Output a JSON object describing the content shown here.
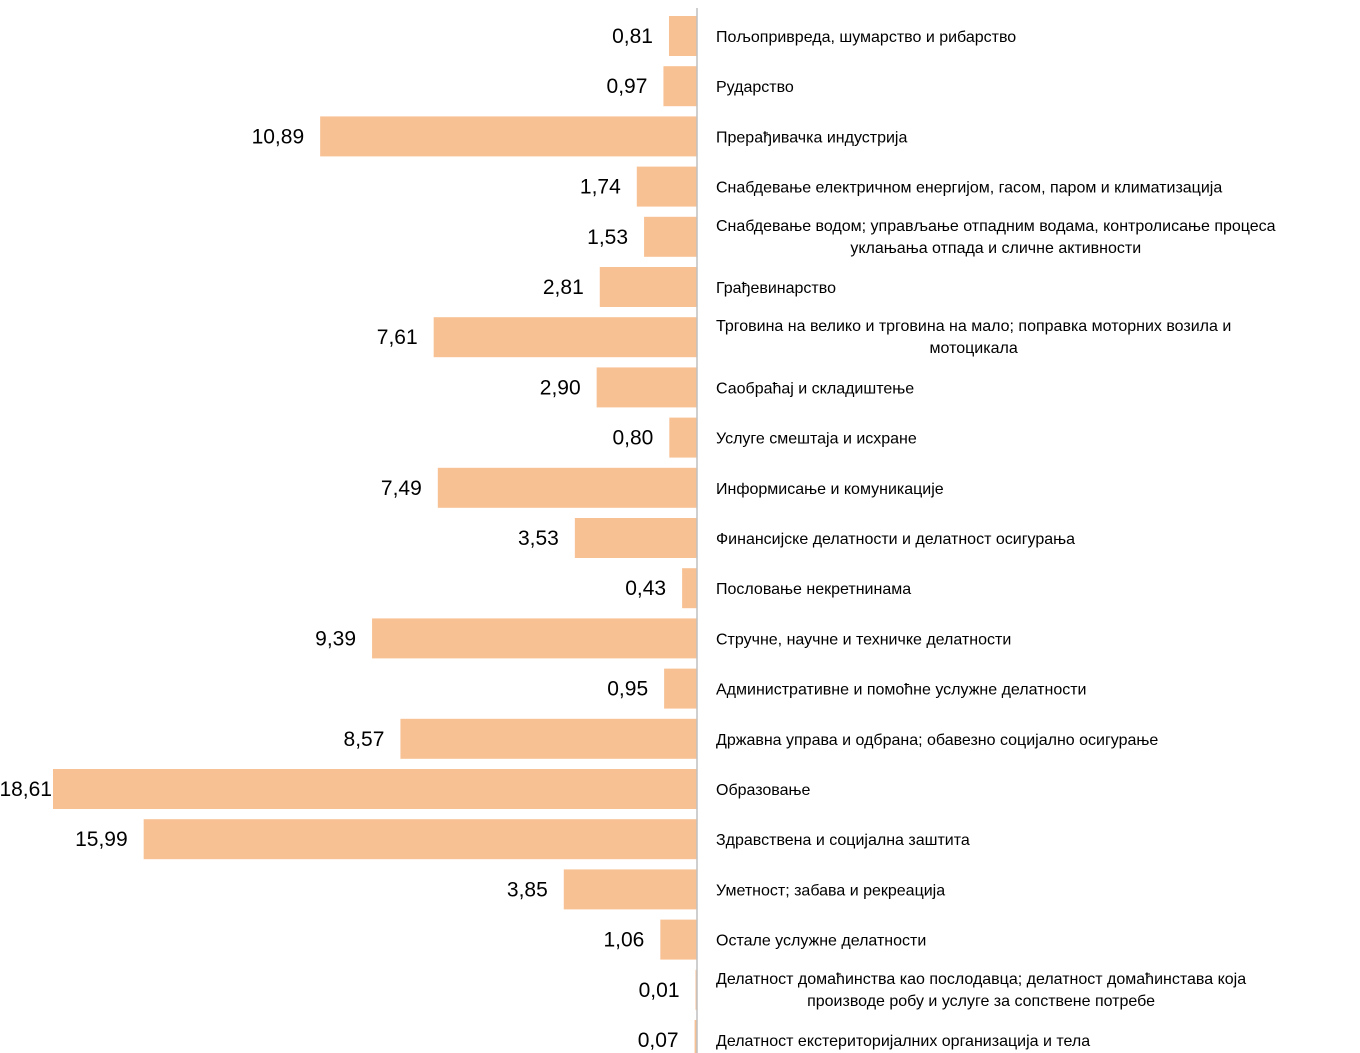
{
  "chart_data": {
    "type": "bar",
    "orientation": "horizontal",
    "bar_color": "#f8c194",
    "axis_color": "#bfbfbf",
    "title": "",
    "xlabel": "",
    "ylabel": "",
    "xlim": [
      0,
      18.61
    ],
    "grid": false,
    "legend": "none",
    "categories": [
      [
        "Пољопривреда, шумарство и рибарство"
      ],
      [
        "Рударство"
      ],
      [
        "Прерађивачка индустрија"
      ],
      [
        "Снабдевање електричном енергијом, гасом, паром и климатизација"
      ],
      [
        "Снабдевање водом; управљање отпадним водама, контролисање процеса",
        "уклањања отпада и сличне активности"
      ],
      [
        "Грађевинарство"
      ],
      [
        "Трговина на велико и трговина на мало; поправка моторних возила и",
        "мотоцикала"
      ],
      [
        "Саобраћај и складиштење"
      ],
      [
        "Услуге смештаја и исхране"
      ],
      [
        "Информисање и комуникације"
      ],
      [
        "Финансијске делатности и делатност осигурања"
      ],
      [
        "Пословање некретнинама"
      ],
      [
        "Стручне, научне и техничке делатности"
      ],
      [
        "Административне и помоћне услужне делатности"
      ],
      [
        "Државна управа и одбрана; обавезно социјално осигурање"
      ],
      [
        "Образовање"
      ],
      [
        "Здравствена и социјална заштита"
      ],
      [
        "Уметност; забава и рекреација"
      ],
      [
        "Остале услужне делатности"
      ],
      [
        "Делатност домаћинства као послодавца; делатност домаћинстава која",
        "производе робу и услуге за сопствене потребе"
      ],
      [
        "Делатност екстериторијалних организација и тела"
      ]
    ],
    "values": [
      0.81,
      0.97,
      10.89,
      1.74,
      1.53,
      2.81,
      7.61,
      2.9,
      0.8,
      7.49,
      3.53,
      0.43,
      9.39,
      0.95,
      8.57,
      18.61,
      15.99,
      3.85,
      1.06,
      0.01,
      0.07
    ],
    "value_labels": [
      "0,81",
      "0,97",
      "10,89",
      "1,74",
      "1,53",
      "2,81",
      "7,61",
      "2,90",
      "0,80",
      "7,49",
      "3,53",
      "0,43",
      "9,39",
      "0,95",
      "8,57",
      "18,61",
      "15,99",
      "3,85",
      "1,06",
      "0,01",
      "0,07"
    ]
  }
}
